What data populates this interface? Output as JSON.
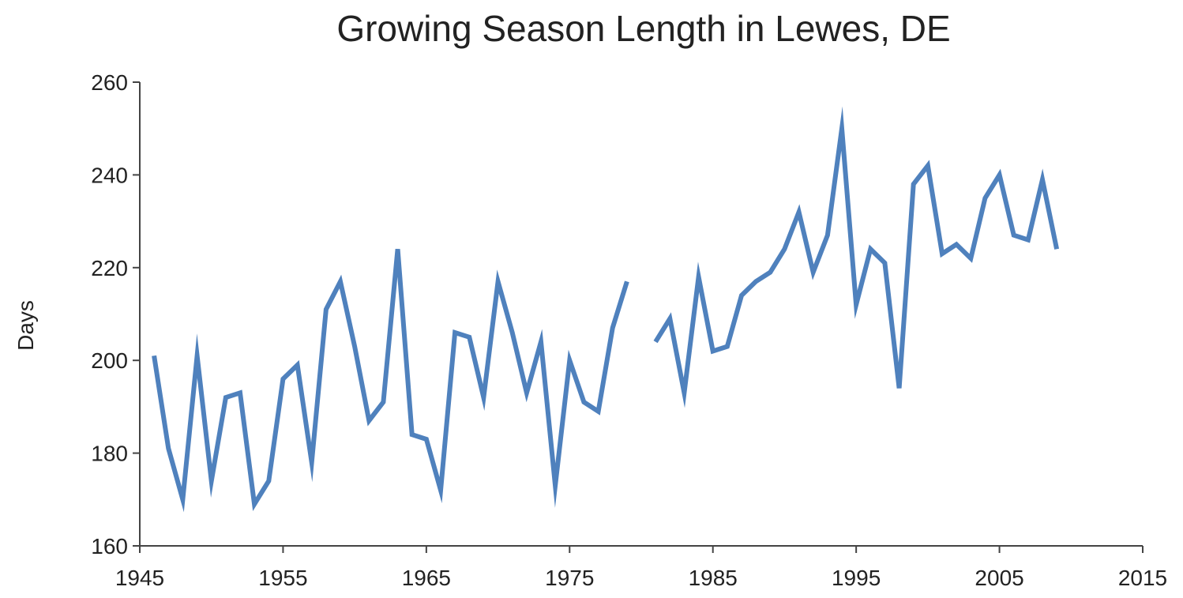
{
  "chart_data": {
    "type": "line",
    "title": "Growing Season Length in Lewes, DE",
    "xlabel": "",
    "ylabel": "Days",
    "xlim": [
      1945,
      2015
    ],
    "ylim": [
      160,
      260
    ],
    "x_ticks": [
      "1945",
      "1955",
      "1965",
      "1975",
      "1985",
      "1995",
      "2005",
      "2015"
    ],
    "y_ticks": [
      "160",
      "180",
      "200",
      "220",
      "240",
      "260"
    ],
    "grid": false,
    "legend": "none",
    "line_color": "#4F81BD",
    "series": [
      {
        "x": [
          1946,
          1947,
          1948,
          1949,
          1950,
          1951,
          1952,
          1953,
          1954,
          1955,
          1956,
          1957,
          1958,
          1959,
          1960,
          1961,
          1962,
          1963,
          1964,
          1965,
          1966,
          1967,
          1968,
          1969,
          1970,
          1971,
          1972,
          1973,
          1974,
          1975,
          1976,
          1977,
          1978,
          1979,
          1980,
          1981,
          1982,
          1983,
          1984,
          1985,
          1986,
          1987,
          1988,
          1989,
          1990,
          1991,
          1992,
          1993,
          1994,
          1995,
          1996,
          1997,
          1998,
          1999,
          2000,
          2001,
          2002,
          2003,
          2004,
          2005,
          2006,
          2007,
          2008,
          2009
        ],
        "values": [
          201,
          181,
          170,
          201,
          174,
          192,
          193,
          169,
          174,
          196,
          199,
          178,
          211,
          217,
          203,
          187,
          191,
          224,
          184,
          183,
          172,
          206,
          205,
          192,
          217,
          206,
          193,
          204,
          173,
          200,
          191,
          189,
          207,
          217,
          null,
          204,
          209,
          193,
          218,
          202,
          203,
          214,
          217,
          219,
          224,
          232,
          219,
          227,
          250,
          212,
          224,
          221,
          194,
          238,
          242,
          223,
          225,
          222,
          235,
          240,
          227,
          226,
          239,
          224
        ]
      }
    ]
  }
}
